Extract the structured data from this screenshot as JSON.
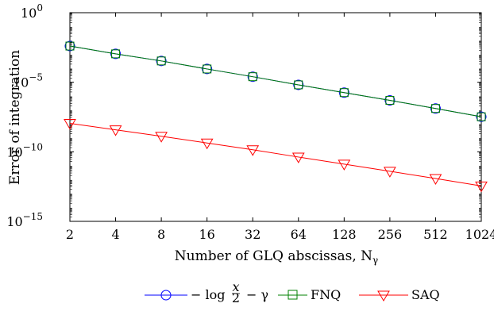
{
  "chart_data": {
    "type": "line",
    "xlabel": "Number of GLQ abscissas, N",
    "xlabel_sub": "γ",
    "ylabel": "Error of integration",
    "x_scale": "log2",
    "y_scale": "log10",
    "x": [
      2,
      4,
      8,
      16,
      32,
      64,
      128,
      256,
      512,
      1024
    ],
    "x_tick_labels": [
      "2",
      "4",
      "8",
      "16",
      "32",
      "64",
      "128",
      "256",
      "512",
      "1024"
    ],
    "xlim": [
      2,
      1024
    ],
    "ylim": [
      1e-15,
      1
    ],
    "y_ticks": [
      {
        "value": 1,
        "base": "10",
        "exp": "0"
      },
      {
        "value": 1e-05,
        "base": "10",
        "exp": "−5"
      },
      {
        "value": 1e-10,
        "base": "10",
        "exp": "−10"
      },
      {
        "value": 1e-15,
        "base": "10",
        "exp": "−15"
      }
    ],
    "grid": false,
    "legend_position": "bottom",
    "series": [
      {
        "name": "− log x/2 − γ",
        "legend_parts": {
          "pre": "−  log",
          "frac_num": "x",
          "frac_den": "2",
          "post": "−  γ"
        },
        "color": "#0000ff",
        "marker": "circle",
        "values": [
          0.004,
          0.0011,
          0.00034,
          9e-05,
          2.5e-05,
          6.5e-06,
          1.8e-06,
          5e-07,
          1.3e-07,
          3.3e-08
        ]
      },
      {
        "name": "FNQ",
        "color": "#008000",
        "marker": "square",
        "values": [
          0.004,
          0.0011,
          0.00034,
          9e-05,
          2.5e-05,
          6.5e-06,
          1.8e-06,
          5e-07,
          1.3e-07,
          3.3e-08
        ]
      },
      {
        "name": "SAQ",
        "color": "#ff0000",
        "marker": "triangle-down",
        "values": [
          1.1e-08,
          3.8e-09,
          1.3e-09,
          4.3e-10,
          1.4e-10,
          4.2e-11,
          1.3e-11,
          4e-12,
          1.2e-12,
          3.5e-13
        ]
      }
    ]
  }
}
